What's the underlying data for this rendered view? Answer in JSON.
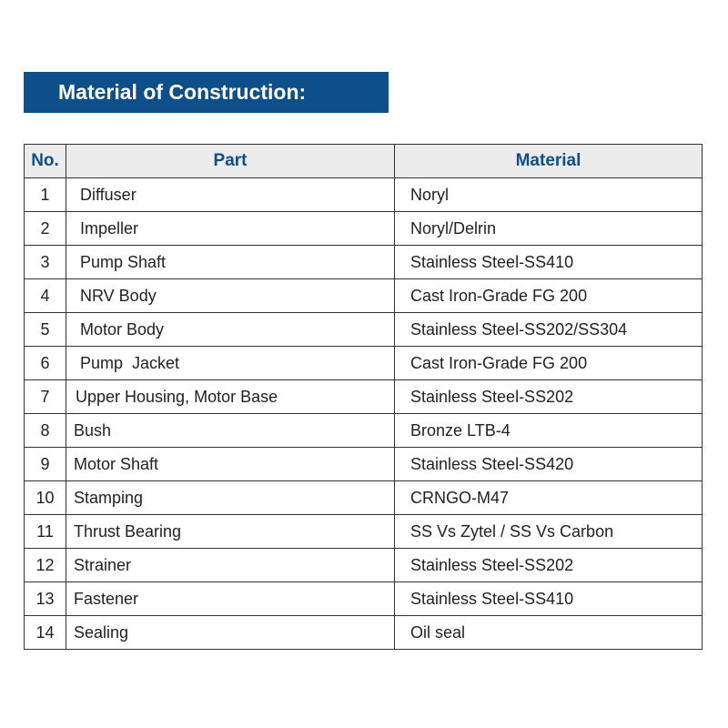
{
  "title": "Material of Construction:",
  "colors": {
    "accent": "#0d4f8b",
    "header_bg": "#ececec"
  },
  "table": {
    "headers": [
      "No.",
      "Part",
      "Material"
    ],
    "rows": [
      [
        "1",
        "Diffuser",
        "Noryl"
      ],
      [
        "2",
        "Impeller",
        "Noryl/Delrin"
      ],
      [
        "3",
        "Pump Shaft",
        "Stainless Steel-SS410"
      ],
      [
        "4",
        "NRV Body",
        "Cast Iron-Grade FG 200"
      ],
      [
        "5",
        "Motor Body",
        "Stainless Steel-SS202/SS304"
      ],
      [
        "6",
        "Pump  Jacket",
        "Cast Iron-Grade FG 200"
      ],
      [
        "7",
        "Upper Housing, Motor Base",
        "Stainless Steel-SS202"
      ],
      [
        "8",
        "Bush",
        "Bronze LTB-4"
      ],
      [
        "9",
        "Motor Shaft",
        "Stainless Steel-SS420"
      ],
      [
        "10",
        "Stamping",
        "CRNGO-M47"
      ],
      [
        "11",
        "Thrust Bearing",
        "SS Vs Zytel / SS Vs Carbon"
      ],
      [
        "12",
        "Strainer",
        "Stainless Steel-SS202"
      ],
      [
        "13",
        "Fastener",
        "Stainless Steel-SS410"
      ],
      [
        "14",
        "Sealing",
        "Oil seal"
      ]
    ]
  }
}
